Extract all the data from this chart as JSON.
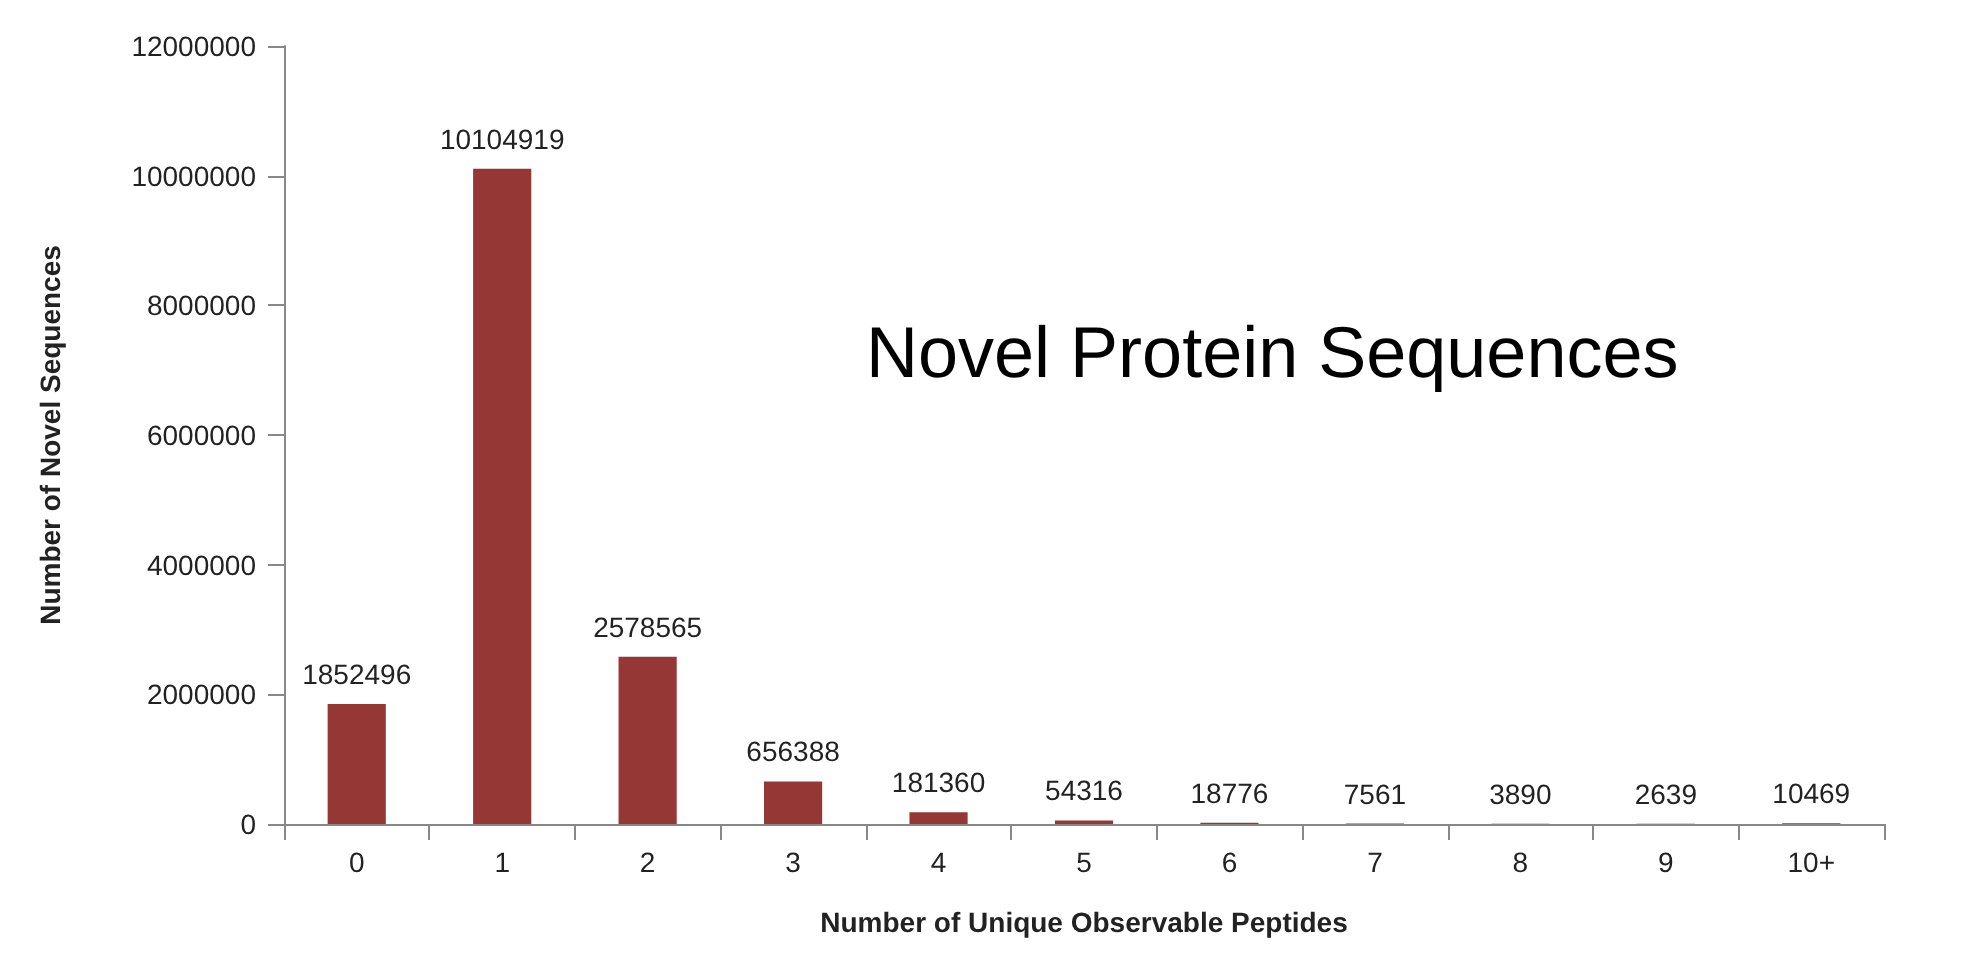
{
  "chart_data": {
    "type": "bar",
    "title": "Novel Protein Sequences",
    "xlabel": "Number of Unique Observable Peptides",
    "ylabel": "Number of Novel Sequences",
    "categories": [
      "0",
      "1",
      "2",
      "3",
      "4",
      "5",
      "6",
      "7",
      "8",
      "9",
      "10+"
    ],
    "values": [
      1852496,
      10104919,
      2578565,
      656388,
      181360,
      54316,
      18776,
      7561,
      3890,
      2639,
      10469
    ],
    "color": "#953735",
    "ylim": [
      0,
      12000000
    ],
    "yticks": [
      0,
      2000000,
      4000000,
      6000000,
      8000000,
      10000000,
      12000000
    ],
    "grid": false,
    "data_labels": true
  }
}
